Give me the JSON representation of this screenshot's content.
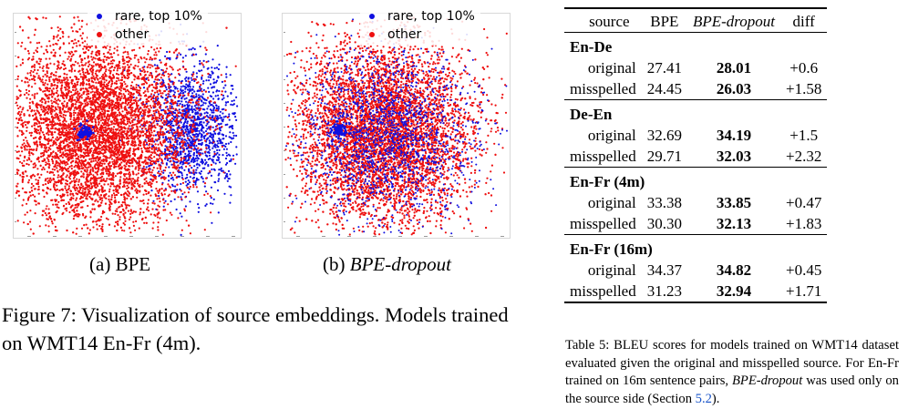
{
  "figure": {
    "legend": {
      "rare_label": "rare, top 10%",
      "other_label": "other"
    },
    "colors": {
      "rare": "#1010e0",
      "other": "#ee1010"
    },
    "subcaption_a": {
      "prefix": "(a) ",
      "name": "BPE"
    },
    "subcaption_b": {
      "prefix": "(b) ",
      "name": "BPE-dropout"
    },
    "caption": "Figure 7: Visualization of source embeddings. Models trained on WMT14 En-Fr (4m)."
  },
  "table": {
    "headers": [
      "source",
      "BPE",
      "BPE-dropout",
      "diff"
    ],
    "groups": [
      {
        "name": "En-De",
        "rows": [
          {
            "label": "original",
            "bpe": "27.41",
            "dropout": "28.01",
            "diff": "+0.6"
          },
          {
            "label": "misspelled",
            "bpe": "24.45",
            "dropout": "26.03",
            "diff": "+1.58"
          }
        ]
      },
      {
        "name": "De-En",
        "rows": [
          {
            "label": "original",
            "bpe": "32.69",
            "dropout": "34.19",
            "diff": "+1.5"
          },
          {
            "label": "misspelled",
            "bpe": "29.71",
            "dropout": "32.03",
            "diff": "+2.32"
          }
        ]
      },
      {
        "name": "En-Fr (4m)",
        "rows": [
          {
            "label": "original",
            "bpe": "33.38",
            "dropout": "33.85",
            "diff": "+0.47"
          },
          {
            "label": "misspelled",
            "bpe": "30.30",
            "dropout": "32.13",
            "diff": "+1.83"
          }
        ]
      },
      {
        "name": "En-Fr (16m)",
        "rows": [
          {
            "label": "original",
            "bpe": "34.37",
            "dropout": "34.82",
            "diff": "+0.45"
          },
          {
            "label": "misspelled",
            "bpe": "31.23",
            "dropout": "32.94",
            "diff": "+1.71"
          }
        ]
      }
    ],
    "caption_part1": "Table 5: BLEU scores for models trained on WMT14 dataset evaluated given the original and misspelled source. For En-Fr trained on 16m sentence pairs, ",
    "caption_italic": "BPE-dropout",
    "caption_part2": " was used only on the source side (Section ",
    "caption_link": "5.2",
    "caption_part3": ")."
  }
}
